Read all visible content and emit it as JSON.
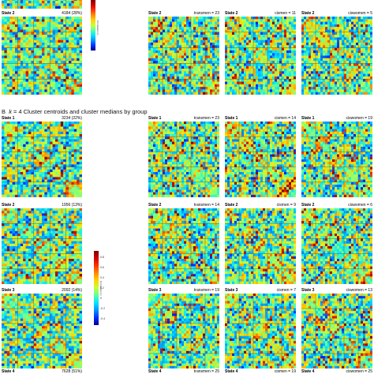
{
  "section_b": {
    "letter": "B",
    "k_label": "k",
    "text": "= 4 Cluster centroids and cluster medians by group"
  },
  "top_panels": [
    {
      "state": "State 2",
      "info": "4184 (28%)"
    },
    {
      "state": "State 2",
      "info": "transmen = 23"
    },
    {
      "state": "State 2",
      "info": "cismen = 11"
    },
    {
      "state": "State 2",
      "info": "ciswomen = 5"
    }
  ],
  "k4_rows": [
    {
      "centroid": {
        "state": "State 1",
        "info": "3234 (22%)"
      },
      "groups": [
        {
          "state": "State 1",
          "info": "transmen = 23"
        },
        {
          "state": "State 1",
          "info": "cismen = 14"
        },
        {
          "state": "State 1",
          "info": "ciswomen = 19"
        }
      ]
    },
    {
      "centroid": {
        "state": "State 2",
        "info": "1956 (13%)"
      },
      "groups": [
        {
          "state": "State 2",
          "info": "transmen = 14"
        },
        {
          "state": "State 2",
          "info": "cismen = 9"
        },
        {
          "state": "State 2",
          "info": "ciswomen = 6"
        }
      ]
    },
    {
      "centroid": {
        "state": "State 3",
        "info": "2092 (14%)"
      },
      "groups": [
        {
          "state": "State 3",
          "info": "transmen = 19"
        },
        {
          "state": "State 3",
          "info": "cismen = 7"
        },
        {
          "state": "State 3",
          "info": "ciswomen = 13"
        }
      ]
    },
    {
      "centroid": {
        "state": "State 4",
        "info": "7628 (51%)"
      },
      "groups": [
        {
          "state": "State 4",
          "info": "transmen = 25"
        },
        {
          "state": "State 4",
          "info": "cismen = 19"
        },
        {
          "state": "State 4",
          "info": "ciswomen = 25"
        }
      ]
    }
  ],
  "colorbar": {
    "ticks": [
      "0.8",
      "0.6",
      "0.4",
      "0.2",
      "0",
      "-0.2",
      "-0.4"
    ],
    "label": "Correlation (r)"
  },
  "colors": {
    "high": "#a50000",
    "mid": "#7dff7a",
    "low": "#00008f",
    "grid": "#404040"
  }
}
